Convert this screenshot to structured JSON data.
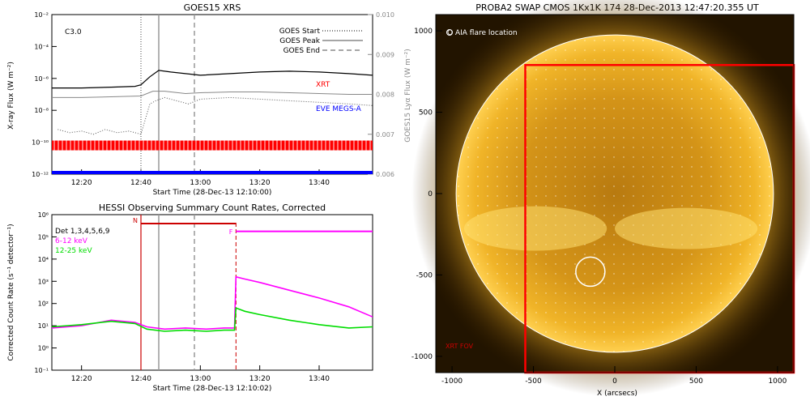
{
  "goes_panel": {
    "title": "GOES15 XRS",
    "class_label": "C3.0",
    "ylabel_left": "X-ray Flux (W m⁻²)",
    "ylabel_right": "GOES15 Lyα Flux (W m⁻²)",
    "xlabel": "Start Time (28-Dec-13 12:10:00)",
    "legend": [
      "GOES Start",
      "GOES Peak",
      "GOES End"
    ],
    "xrt_label": "XRT",
    "eve_label": "EVE MEGS-A",
    "colors": {
      "xrt": "#ff0000",
      "eve": "#0000ff",
      "main": "#000000",
      "secondary": "#888888"
    }
  },
  "hessi_panel": {
    "title": "HESSI Observing Summary Count Rates, Corrected",
    "ylabel": "Corrected Count Rate (s⁻¹ detector⁻¹)",
    "xlabel": "Start Time (28-Dec-13 12:10:02)",
    "legend": [
      "Det 1,3,4,5,6,9",
      "6-12 keV",
      "12-25 keV"
    ],
    "legend_colors": [
      "#000000",
      "#ff00ff",
      "#00dd00"
    ],
    "flag_n": "N",
    "flag_f": "F"
  },
  "swap_panel": {
    "title": "PROBA2 SWAP CMOS 1Kx1K 174 28-Dec-2013 12:47:20.355 UT",
    "aia_label": "O AIA flare location",
    "fov_label": "XRT FOV",
    "xlabel": "X (arcsecs)"
  },
  "chart_data": [
    {
      "type": "line",
      "title": "GOES15 XRS",
      "xlabel": "Start Time (28-Dec-13 12:10:00)",
      "ylabel": "X-ray Flux (W m⁻²)",
      "ylabel_right": "GOES15 Lyα Flux (W m⁻²)",
      "x_ticks": [
        "12:20",
        "12:40",
        "13:00",
        "13:20",
        "13:40"
      ],
      "x_tick_minutes": [
        20,
        40,
        60,
        80,
        100
      ],
      "xlim_minutes": [
        10,
        118
      ],
      "y_scale": "log",
      "ylim": [
        1e-12,
        0.01
      ],
      "y_ticks": [
        "10⁻¹²",
        "10⁻¹⁰",
        "10⁻⁸",
        "10⁻⁶",
        "10⁻⁴",
        "10⁻²"
      ],
      "y_tick_exps": [
        -12,
        -10,
        -8,
        -6,
        -4,
        -2
      ],
      "y_right_ticks": [
        "0.006",
        "0.007",
        "0.008",
        "0.009",
        "0.010"
      ],
      "y_right_values": [
        0.006,
        0.007,
        0.008,
        0.009,
        0.01
      ],
      "vlines_minutes": {
        "start": 40,
        "peak": 46,
        "end": 58
      },
      "series": [
        {
          "name": "",
          "color": "#000000",
          "x": [
            10,
            20,
            30,
            38,
            40,
            43,
            46,
            50,
            55,
            60,
            70,
            80,
            90,
            100,
            110,
            118
          ],
          "log_y": [
            -6.6,
            -6.6,
            -6.55,
            -6.5,
            -6.4,
            -5.9,
            -5.5,
            -5.6,
            -5.7,
            -5.8,
            -5.7,
            -5.6,
            -5.55,
            -5.6,
            -5.7,
            -5.8
          ]
        },
        {
          "name": "",
          "color": "#888888",
          "x": [
            10,
            20,
            30,
            40,
            44,
            48,
            55,
            60,
            70,
            80,
            90,
            100,
            110,
            118
          ],
          "log_y": [
            -7.2,
            -7.2,
            -7.15,
            -7.1,
            -6.8,
            -6.8,
            -6.95,
            -6.9,
            -6.85,
            -6.85,
            -6.9,
            -6.95,
            -7.0,
            -7.0
          ]
        },
        {
          "name": "",
          "color": "#555555",
          "x": [
            12,
            16,
            20,
            24,
            28,
            32,
            36,
            40,
            43,
            45,
            48,
            52,
            56,
            60,
            70,
            80,
            90,
            100,
            110,
            118
          ],
          "log_y": [
            -9.2,
            -9.4,
            -9.3,
            -9.5,
            -9.2,
            -9.4,
            -9.3,
            -9.5,
            -7.6,
            -7.4,
            -7.2,
            -7.4,
            -7.6,
            -7.3,
            -7.2,
            -7.3,
            -7.4,
            -7.5,
            -7.6,
            -7.7
          ]
        }
      ],
      "xrt_log_y": -10.2,
      "eve_log_y": -12.0
    },
    {
      "type": "line",
      "title": "HESSI Observing Summary Count Rates, Corrected",
      "xlabel": "Start Time (28-Dec-13 12:10:02)",
      "ylabel": "Corrected Count Rate (s⁻¹ detector⁻¹)",
      "x_ticks": [
        "12:20",
        "12:40",
        "13:00",
        "13:20",
        "13:40"
      ],
      "x_tick_minutes": [
        20,
        40,
        60,
        80,
        100
      ],
      "xlim_minutes": [
        10,
        118
      ],
      "y_scale": "log",
      "ylim": [
        0.1,
        1000000.0
      ],
      "y_ticks": [
        "10⁻¹",
        "10⁰",
        "10¹",
        "10²",
        "10³",
        "10⁴",
        "10⁵",
        "10⁶"
      ],
      "y_tick_exps": [
        -1,
        0,
        1,
        2,
        3,
        4,
        5,
        6
      ],
      "vlines_minutes": {
        "start": 40,
        "peak": 46,
        "end": 58,
        "f": 72
      },
      "n_flag_minutes": [
        40,
        72
      ],
      "n_flag_log_y": 5.6,
      "series": [
        {
          "name": "6-12 keV",
          "color": "#ff00ff",
          "x": [
            10,
            20,
            30,
            38,
            42,
            48,
            55,
            62,
            68,
            71.5,
            72,
            75,
            80,
            90,
            100,
            110,
            118
          ],
          "log_y": [
            0.9,
            1.0,
            1.25,
            1.15,
            0.95,
            0.85,
            0.9,
            0.85,
            0.9,
            0.9,
            3.2,
            3.1,
            2.95,
            2.6,
            2.25,
            1.85,
            1.4
          ]
        },
        {
          "name": "12-25 keV",
          "color": "#00dd00",
          "x": [
            10,
            20,
            30,
            38,
            42,
            48,
            55,
            62,
            68,
            71.5,
            72,
            75,
            80,
            90,
            100,
            110,
            118
          ],
          "log_y": [
            0.95,
            1.05,
            1.2,
            1.1,
            0.85,
            0.75,
            0.8,
            0.75,
            0.8,
            0.8,
            1.8,
            1.65,
            1.5,
            1.25,
            1.05,
            0.9,
            0.95
          ]
        },
        {
          "name": "",
          "color": "#ff00ff",
          "x": [
            72,
            118
          ],
          "log_y": [
            5.25,
            5.25
          ]
        }
      ]
    },
    {
      "type": "image",
      "title": "PROBA2 SWAP CMOS 1Kx1K 174 28-Dec-2013 12:47:20.355 UT",
      "xlabel": "X (arcsecs)",
      "x_ticks": [
        "-1000",
        "-500",
        "0",
        "500",
        "1000"
      ],
      "x_tick_values": [
        -1000,
        -500,
        0,
        500,
        1000
      ],
      "y_ticks": [
        "-1000",
        "-500",
        "0",
        "500",
        "1000"
      ],
      "y_tick_values": [
        -1000,
        -500,
        0,
        500,
        1000
      ],
      "xlim": [
        -1100,
        1100
      ],
      "ylim": [
        -1100,
        1100
      ],
      "solar_radius_arcsec": 975,
      "aia_flare_location": [
        -150,
        -480
      ],
      "xrt_fov_x": [
        -550,
        1100
      ],
      "xrt_fov_y": [
        -1100,
        790
      ]
    }
  ]
}
